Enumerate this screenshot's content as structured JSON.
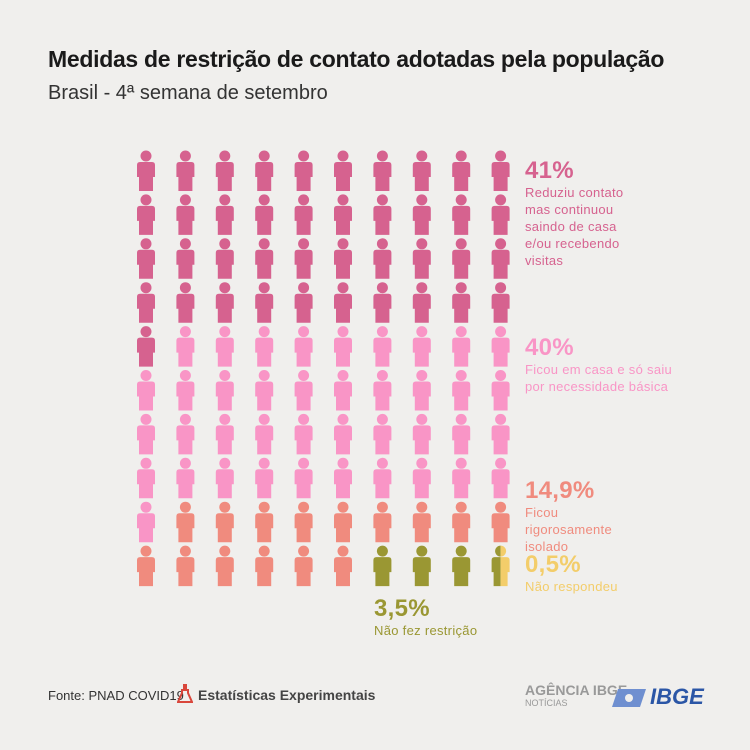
{
  "header": {
    "title": "Medidas de restrição de contato adotadas pela população",
    "subtitle": "Brasil - 4ª semana de setembro"
  },
  "chart_data": {
    "type": "pictogram",
    "title": "Medidas de restrição de contato adotadas pela população",
    "subtitle": "Brasil - 4ª semana de setembro",
    "total_icons": 100,
    "series": [
      {
        "name": "Reduziu contato mas continuou saindo de casa e/ou recebendo visitas",
        "value": 41,
        "label": "41%",
        "color": "#d6628f",
        "icons": 41
      },
      {
        "name": "Ficou em casa e só saiu por necessidade básica",
        "value": 40,
        "label": "40%",
        "color": "#f995c6",
        "icons": 40
      },
      {
        "name": "Ficou rigorosamente isolado",
        "value": 14.9,
        "label": "14,9%",
        "color": "#f08b7e",
        "icons": 15
      },
      {
        "name": "Não fez restrição",
        "value": 3.5,
        "label": "3,5%",
        "color": "#9a9733",
        "icons": 3.5
      },
      {
        "name": "Não respondeu",
        "value": 0.5,
        "label": "0,5%",
        "color": "#f3cd6a",
        "icons": 0.5
      }
    ]
  },
  "labels": {
    "s0": {
      "pct": "41%",
      "text": "Reduziu contato mas continuou saindo de casa e/ou recebendo visitas"
    },
    "s1": {
      "pct": "40%",
      "text": "Ficou em casa e só saiu por necessidade básica"
    },
    "s2": {
      "pct": "14,9%",
      "text": "Ficou rigorosamente isolado"
    },
    "s3": {
      "pct": "3,5%",
      "text": "Não fez restrição"
    },
    "s4": {
      "pct": "0,5%",
      "text": "Não respondeu"
    }
  },
  "footer": {
    "source": "Fonte: PNAD COVID19",
    "experimental": "Estatísticas Experimentais",
    "agencia": "AGÊNCIA IBGE",
    "noticias": "NOTÍCIAS",
    "ibge": "IBGE"
  }
}
